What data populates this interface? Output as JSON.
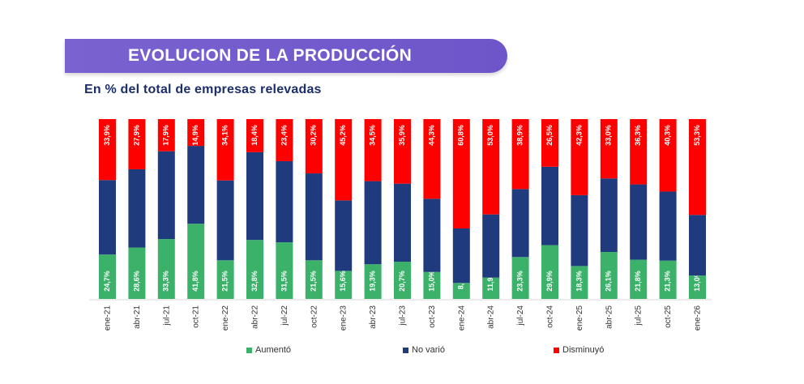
{
  "header": {
    "title": "EVOLUCION DE LA PRODUCCIÓN",
    "subtitle": "En % del total de empresas relevadas"
  },
  "chart_data": {
    "type": "bar",
    "stacked": true,
    "title": "EVOLUCION DE LA PRODUCCIÓN",
    "subtitle": "En % del total de empresas relevadas",
    "xlabel": "",
    "ylabel": "%",
    "ylim": [
      0,
      100
    ],
    "legend_position": "bottom",
    "categories": [
      "ene-21",
      "abr-21",
      "jul-21",
      "oct-21",
      "ene-22",
      "abr-22",
      "jul-22",
      "oct-22",
      "ene-23",
      "abr-23",
      "jul-23",
      "oct-23",
      "ene-24",
      "abr-24",
      "jul-24",
      "oct-24",
      "ene-25",
      "abr-25",
      "jul-25",
      "oct-25",
      "ene-26"
    ],
    "series": [
      {
        "name": "Aumentó",
        "color": "#3bb16a",
        "labeled": true,
        "values": [
          24.7,
          28.6,
          33.3,
          41.8,
          21.5,
          32.8,
          31.5,
          21.5,
          15.6,
          19.3,
          20.7,
          15.0,
          8.9,
          11.9,
          23.3,
          29.9,
          18.3,
          26.1,
          21.8,
          21.3,
          13.0
        ]
      },
      {
        "name": "No varió",
        "color": "#1f3b7d",
        "labeled": false,
        "values": [
          41.4,
          43.5,
          48.8,
          43.3,
          44.4,
          48.8,
          45.1,
          48.3,
          39.2,
          46.2,
          43.4,
          40.7,
          30.3,
          35.1,
          37.8,
          43.6,
          39.4,
          40.9,
          41.9,
          38.4,
          33.7
        ]
      },
      {
        "name": "Disminuyó",
        "color": "#fe0000",
        "labeled": true,
        "values": [
          33.9,
          27.9,
          17.9,
          14.9,
          34.1,
          18.4,
          23.4,
          30.2,
          45.2,
          34.5,
          35.9,
          44.3,
          60.8,
          53.0,
          38.9,
          26.5,
          42.3,
          33.0,
          36.3,
          40.3,
          53.3
        ]
      }
    ]
  }
}
